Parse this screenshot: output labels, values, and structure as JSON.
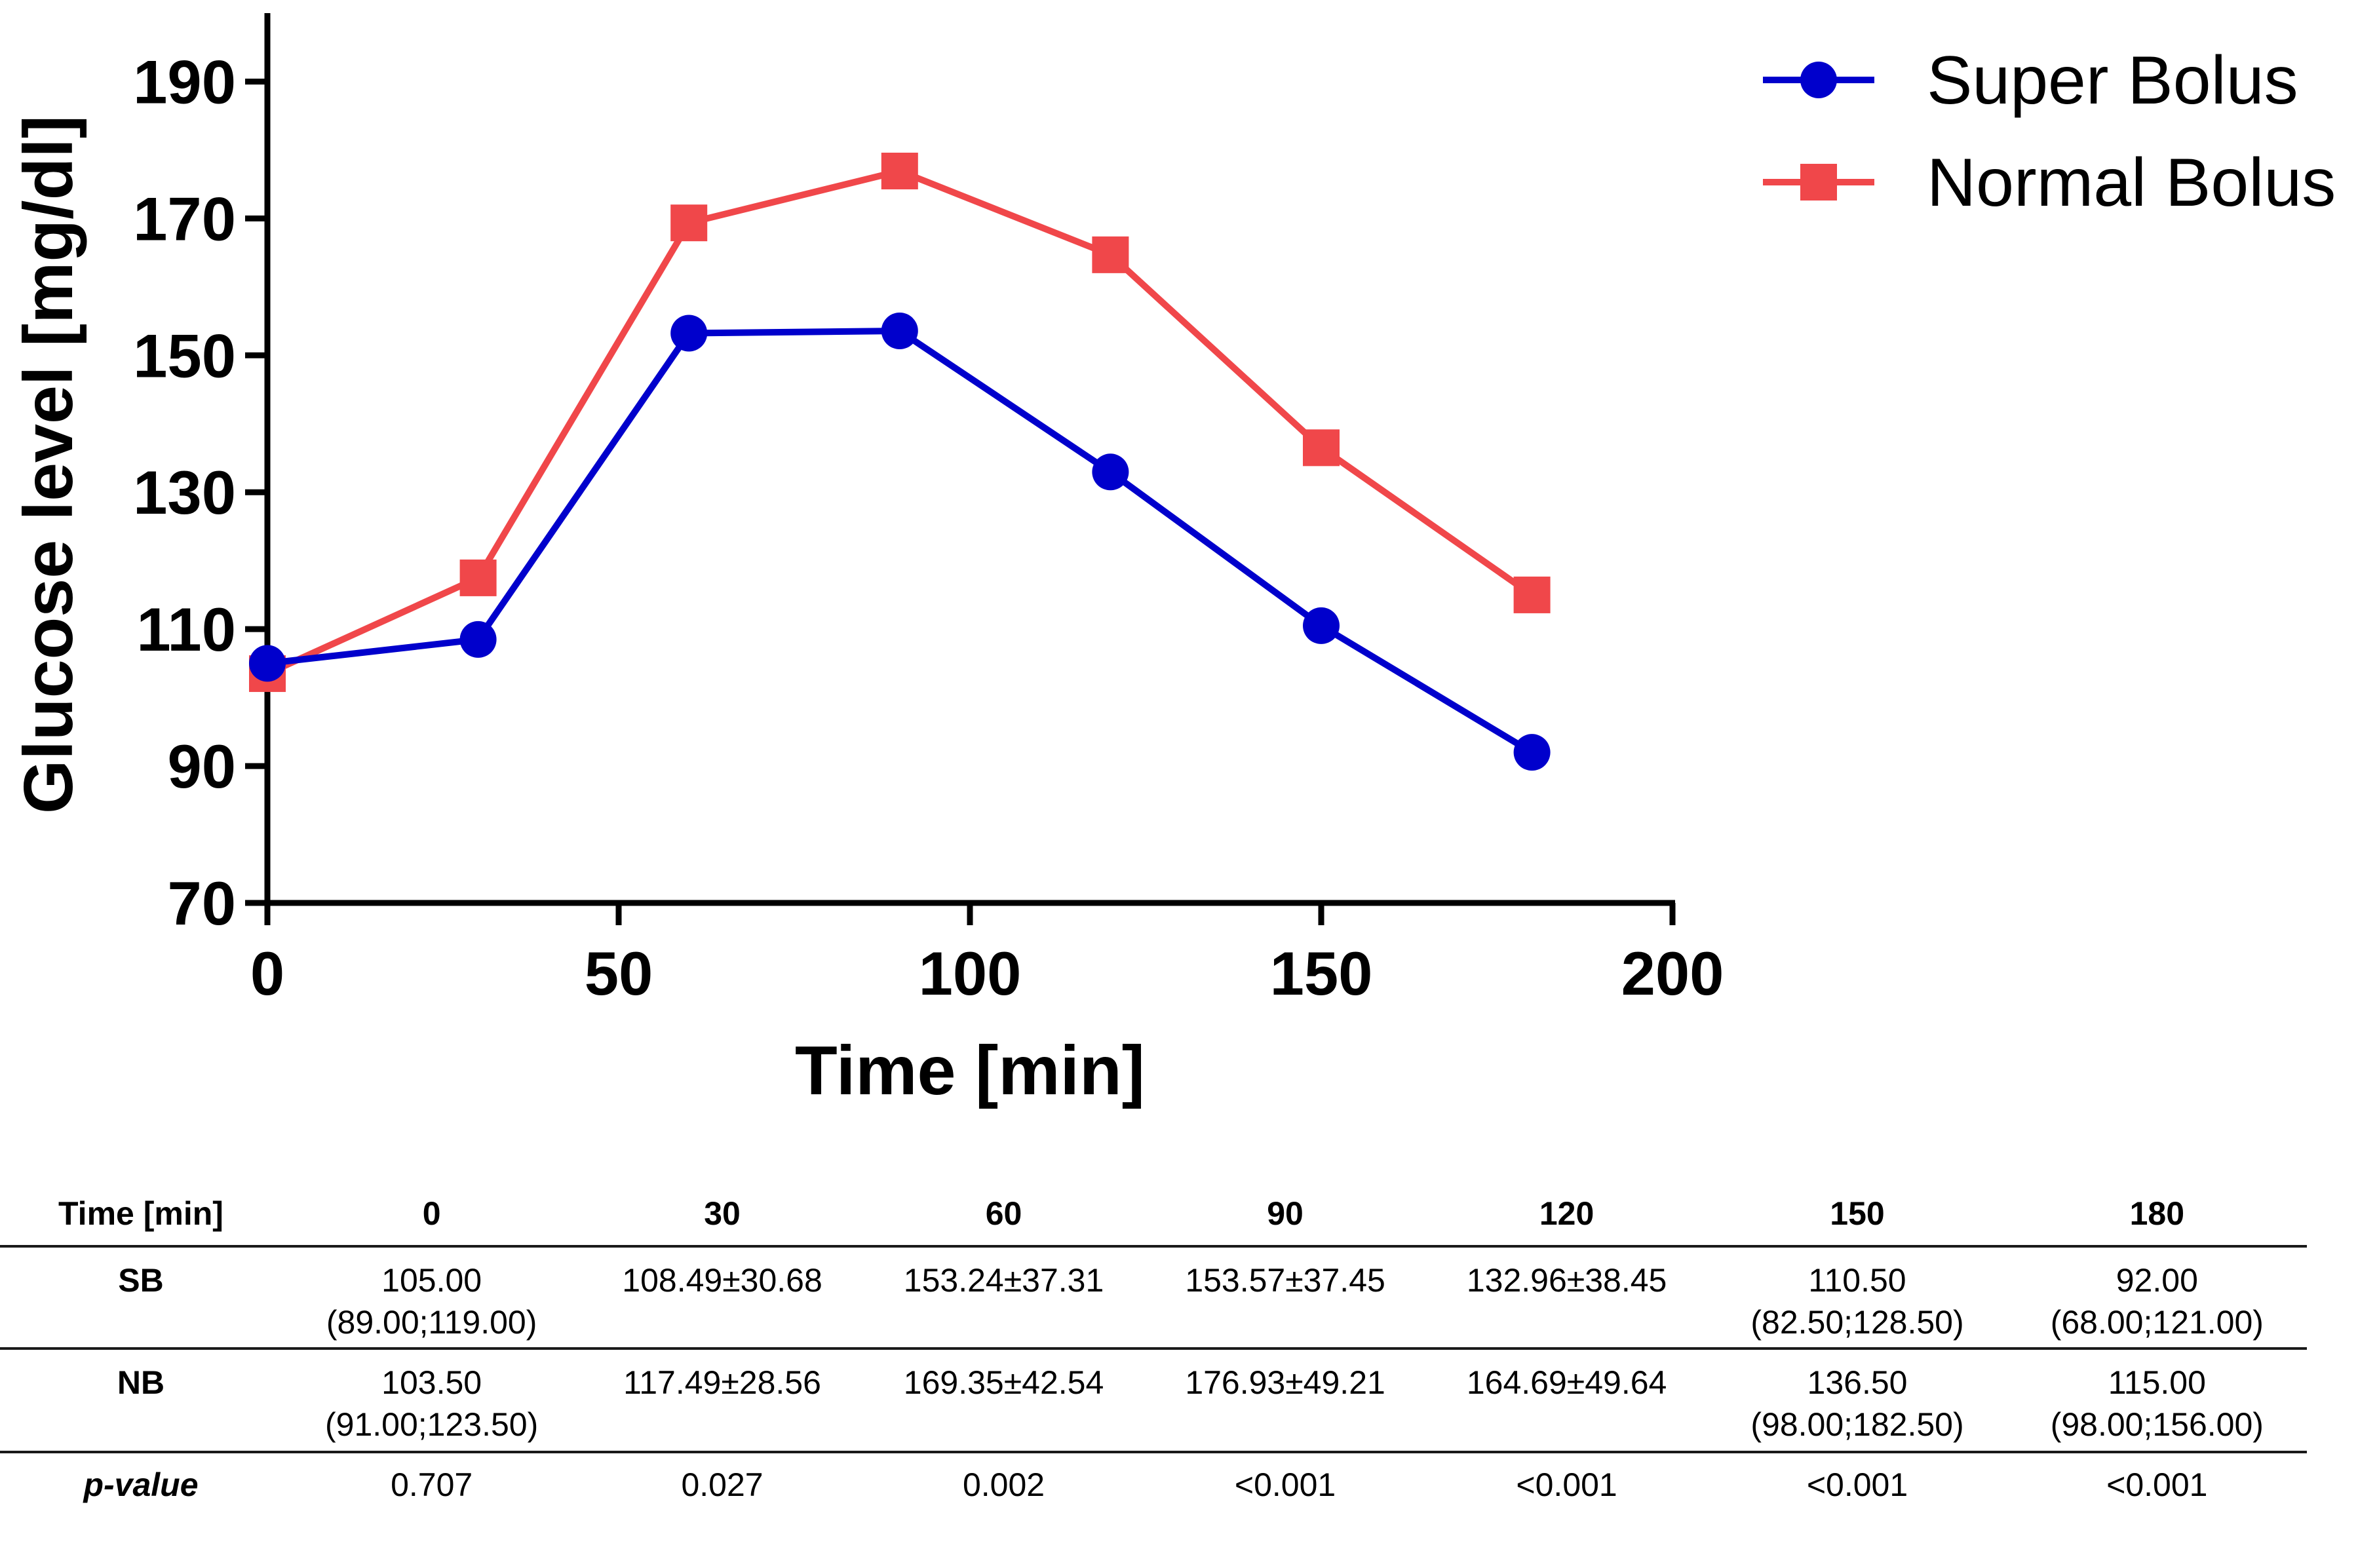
{
  "chart_data": {
    "type": "line",
    "title": "",
    "xlabel": "Time [min]",
    "ylabel": "Glucose level [mg/dl]",
    "xlim": [
      0,
      200
    ],
    "ylim": [
      70,
      200
    ],
    "xticks": [
      0,
      50,
      100,
      150,
      200
    ],
    "yticks": [
      70,
      90,
      110,
      130,
      150,
      170,
      190
    ],
    "x": [
      0,
      30,
      60,
      90,
      120,
      150,
      180
    ],
    "series": [
      {
        "name": "Super Bolus",
        "color": "#0000cc",
        "marker": "circle",
        "values": [
          105.0,
          108.49,
          153.24,
          153.57,
          132.96,
          110.5,
          92.0
        ]
      },
      {
        "name": "Normal Bolus",
        "color": "#f0474a",
        "marker": "square",
        "values": [
          103.5,
          117.49,
          169.35,
          176.93,
          164.69,
          136.5,
          115.0
        ]
      }
    ],
    "legend": "top-right",
    "grid": false
  },
  "table": {
    "header_label": "Time [min]",
    "columns": [
      "0",
      "30",
      "60",
      "90",
      "120",
      "150",
      "180"
    ],
    "rows": [
      {
        "label": "SB",
        "cells": [
          [
            "105.00",
            "(89.00;119.00)"
          ],
          [
            "108.49±30.68"
          ],
          [
            "153.24±37.31"
          ],
          [
            "153.57±37.45"
          ],
          [
            "132.96±38.45"
          ],
          [
            "110.50",
            "(82.50;128.50)"
          ],
          [
            "92.00",
            "(68.00;121.00)"
          ]
        ]
      },
      {
        "label": "NB",
        "cells": [
          [
            "103.50",
            "(91.00;123.50)"
          ],
          [
            "117.49±28.56"
          ],
          [
            "169.35±42.54"
          ],
          [
            "176.93±49.21"
          ],
          [
            "164.69±49.64"
          ],
          [
            "136.50",
            "(98.00;182.50)"
          ],
          [
            "115.00",
            "(98.00;156.00)"
          ]
        ]
      },
      {
        "label": "p-value",
        "cells": [
          [
            "0.707"
          ],
          [
            "0.027"
          ],
          [
            "0.002"
          ],
          [
            "<0.001"
          ],
          [
            "<0.001"
          ],
          [
            "<0.001"
          ],
          [
            "<0.001"
          ]
        ]
      }
    ]
  }
}
